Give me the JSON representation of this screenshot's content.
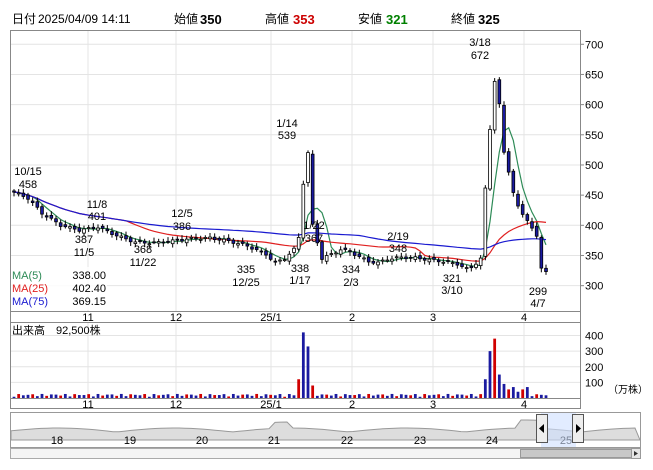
{
  "header": {
    "date_label": "日付",
    "date_value": "2025/04/09 14:11",
    "open_label": "始値",
    "open_value": "350",
    "high_label": "高値",
    "high_value": "353",
    "low_label": "安値",
    "low_value": "321",
    "close_label": "終値",
    "close_value": "325"
  },
  "colors": {
    "up": "#1a1aa0",
    "down": "#d00000",
    "ma5": "#2e8b57",
    "ma25": "#e02020",
    "ma75": "#1a1ad0",
    "high_value": "#cc0000",
    "low_value": "#008000",
    "volume_up": "#1a1aa0",
    "volume_down": "#d00000"
  },
  "legend": {
    "ma5_label": "MA(5)",
    "ma5_value": "338.00",
    "ma25_label": "MA(25)",
    "ma25_value": "402.40",
    "ma75_label": "MA(75)",
    "ma75_value": "369.15"
  },
  "volume": {
    "title": "出来高",
    "value": "92,500株",
    "unit": "（万株）",
    "ticks": [
      "400",
      "300",
      "200",
      "100"
    ]
  },
  "navigator": {
    "ticks": [
      "18",
      "19",
      "20",
      "21",
      "22",
      "23",
      "24",
      "25"
    ]
  },
  "chart_data": {
    "type": "candlestick",
    "y_ticks": [
      700,
      650,
      600,
      550,
      500,
      450,
      400,
      350,
      300
    ],
    "ylim": [
      258,
      722
    ],
    "x_ticks": [
      "11",
      "12",
      "25/1",
      "2",
      "3",
      "4"
    ],
    "annotations": [
      {
        "date": "10/15",
        "value": "458",
        "kind": "high"
      },
      {
        "date": "11/8",
        "value": "401",
        "kind": "high"
      },
      {
        "date": "11/5",
        "value": "387",
        "kind": "low"
      },
      {
        "date": "11/22",
        "value": "368",
        "kind": "low"
      },
      {
        "date": "12/5",
        "value": "386",
        "kind": "high"
      },
      {
        "date": "12/25",
        "value": "335",
        "kind": "low"
      },
      {
        "date": "1/14",
        "value": "539",
        "kind": "high"
      },
      {
        "date": "1/17",
        "value": "338",
        "kind": "low"
      },
      {
        "date": "1/22",
        "value": "367",
        "kind": "high"
      },
      {
        "date": "2/3",
        "value": "334",
        "kind": "low"
      },
      {
        "date": "2/19",
        "value": "348",
        "kind": "high"
      },
      {
        "date": "3/10",
        "value": "321",
        "kind": "low"
      },
      {
        "date": "3/18",
        "value": "672",
        "kind": "high"
      },
      {
        "date": "4/7",
        "value": "299",
        "kind": "low"
      }
    ],
    "ma5_last": 338.0,
    "ma25_last": 402.4,
    "ma75_last": 369.15
  }
}
